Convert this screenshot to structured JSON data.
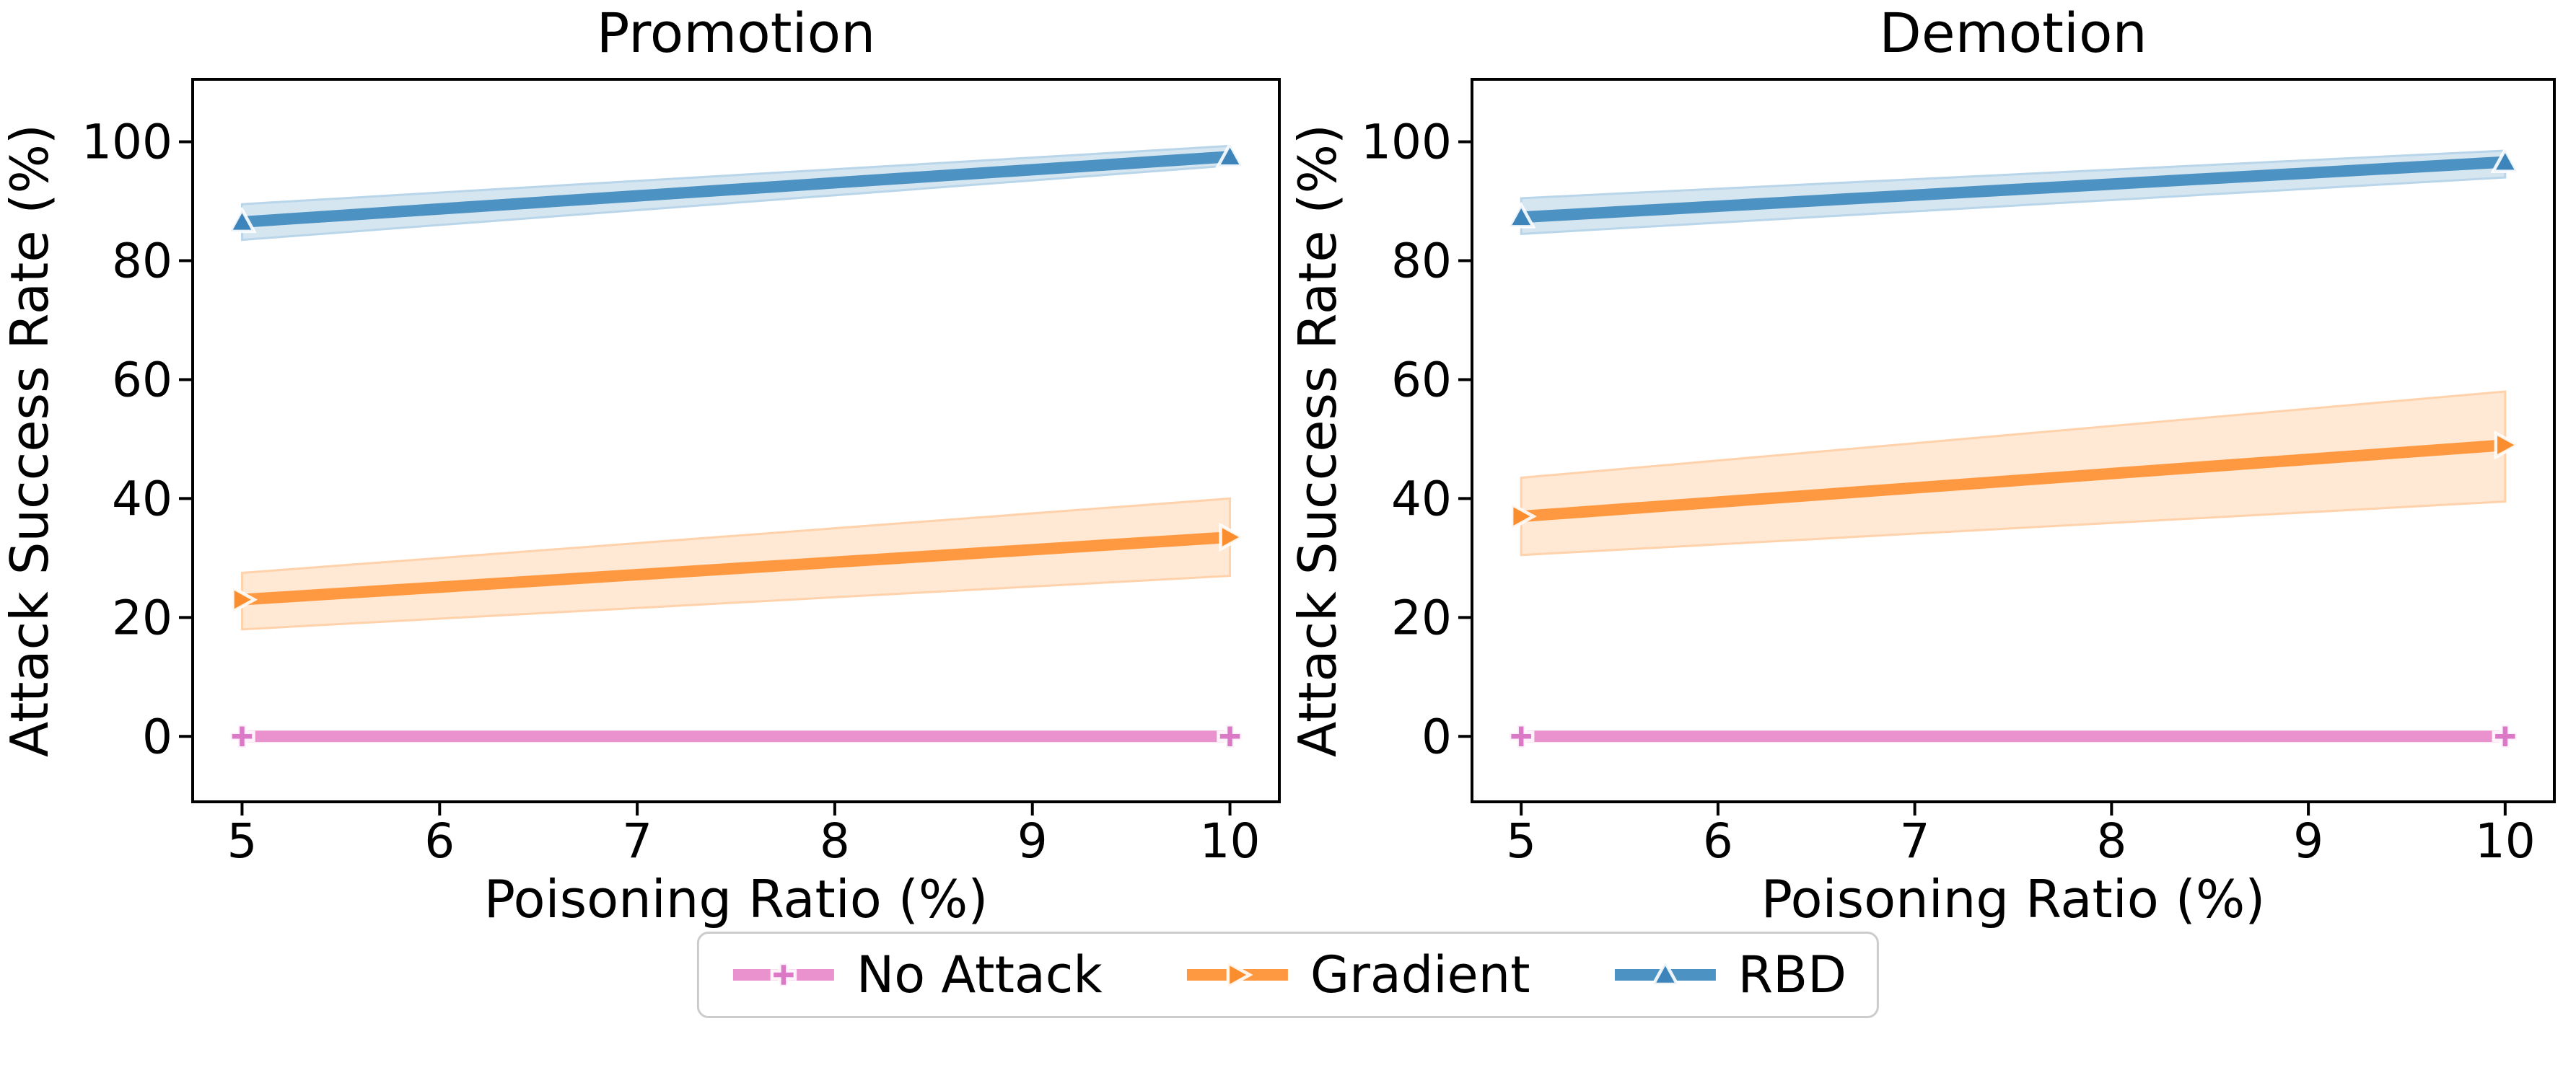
{
  "figure": {
    "background_color": "#ffffff",
    "legend": {
      "position": "bottom-center",
      "entries": [
        {
          "label": "No Attack",
          "marker": "plus",
          "line_color": "#E992CE",
          "marker_color": "#DB79C6",
          "band_fill": "none",
          "band_edge": "none"
        },
        {
          "label": "Gradient",
          "marker": "triangle-right",
          "line_color": "#FF9941",
          "marker_color": "#FA8D2E",
          "band_fill": "#FFE8D4",
          "band_edge": "#FFD2AC"
        },
        {
          "label": "RBD",
          "marker": "triangle-up",
          "line_color": "#4C92C3",
          "marker_color": "#3D84BB",
          "band_fill": "#D6E6F1",
          "band_edge": "#B9D5E9"
        }
      ]
    }
  },
  "chart_data": [
    {
      "type": "line",
      "title": "Promotion",
      "xlabel": "Poisoning Ratio (%)",
      "ylabel": "Attack Success Rate (%)",
      "x": [
        5,
        10
      ],
      "xticks": [
        5,
        6,
        7,
        8,
        9,
        10
      ],
      "yticks": [
        0,
        20,
        40,
        60,
        80,
        100
      ],
      "xlim": [
        4.75,
        10.25
      ],
      "ylim": [
        -11,
        110.5
      ],
      "grid": false,
      "legend_position": "figure-bottom",
      "series": [
        {
          "name": "No Attack",
          "values": [
            0,
            0
          ],
          "band_low": [
            0,
            0
          ],
          "band_high": [
            0,
            0
          ]
        },
        {
          "name": "Gradient",
          "values": [
            23,
            33.5
          ],
          "band_low": [
            18,
            27
          ],
          "band_high": [
            27.5,
            40
          ]
        },
        {
          "name": "RBD",
          "values": [
            86.5,
            97.5
          ],
          "band_low": [
            83.5,
            96
          ],
          "band_high": [
            89.5,
            99.3
          ]
        }
      ]
    },
    {
      "type": "line",
      "title": "Demotion",
      "xlabel": "Poisoning Ratio (%)",
      "ylabel": "Attack Success Rate (%)",
      "x": [
        5,
        10
      ],
      "xticks": [
        5,
        6,
        7,
        8,
        9,
        10
      ],
      "yticks": [
        0,
        20,
        40,
        60,
        80,
        100
      ],
      "xlim": [
        4.75,
        10.25
      ],
      "ylim": [
        -11,
        110.5
      ],
      "grid": false,
      "legend_position": "figure-bottom",
      "series": [
        {
          "name": "No Attack",
          "values": [
            0,
            0
          ],
          "band_low": [
            0,
            0
          ],
          "band_high": [
            0,
            0
          ]
        },
        {
          "name": "Gradient",
          "values": [
            37,
            49
          ],
          "band_low": [
            30.5,
            39.5
          ],
          "band_high": [
            43.5,
            58
          ]
        },
        {
          "name": "RBD",
          "values": [
            87.3,
            96.6
          ],
          "band_low": [
            84.5,
            94
          ],
          "band_high": [
            90.5,
            98.5
          ]
        }
      ]
    }
  ]
}
